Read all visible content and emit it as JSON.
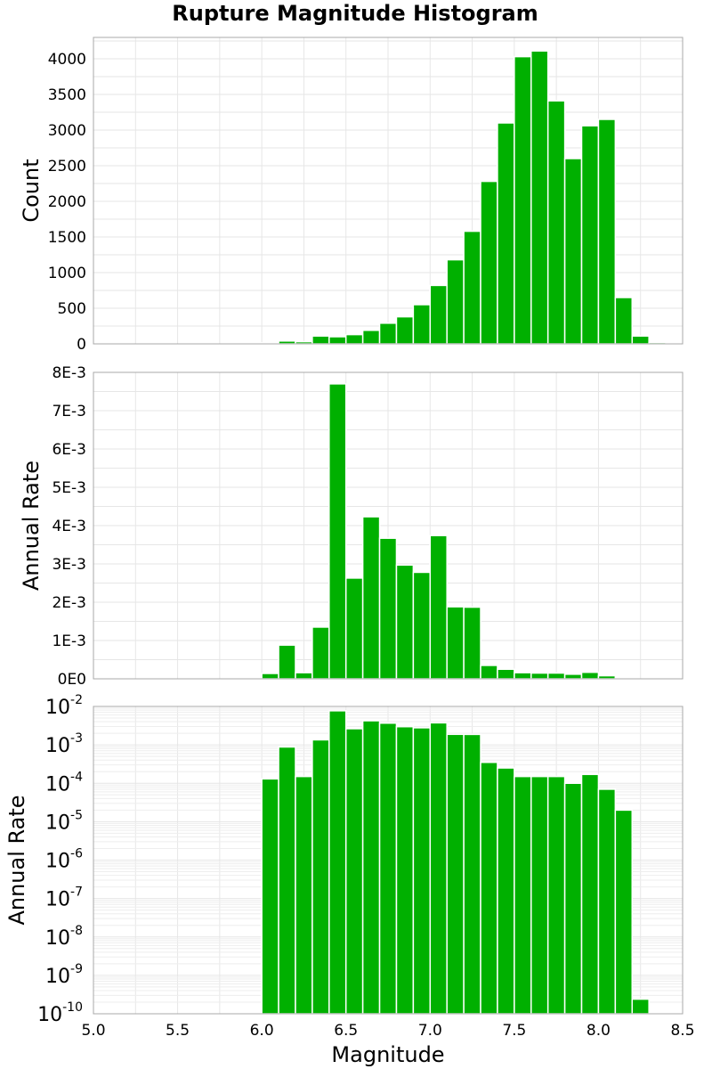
{
  "chart_data": {
    "title": "Rupture Magnitude Histogram",
    "type": "bar",
    "bar_color": "#00b000",
    "x_axis": {
      "label": "Magnitude",
      "range": [
        5.0,
        8.5
      ],
      "ticks": [
        "5.0",
        "5.5",
        "6.0",
        "6.5",
        "7.0",
        "7.5",
        "8.0",
        "8.5"
      ],
      "tick_values": [
        5.0,
        5.5,
        6.0,
        6.5,
        7.0,
        7.5,
        8.0,
        8.5
      ]
    },
    "bin_width": 0.1,
    "bin_centers": [
      6.05,
      6.15,
      6.25,
      6.35,
      6.45,
      6.55,
      6.65,
      6.75,
      6.85,
      6.95,
      7.05,
      7.15,
      7.25,
      7.35,
      7.45,
      7.55,
      7.65,
      7.75,
      7.85,
      7.95,
      8.05,
      8.15,
      8.25,
      8.35
    ],
    "panels": [
      {
        "ylabel": "Count",
        "scale": "linear",
        "ylim": [
          0,
          4300
        ],
        "ticks": [
          "0",
          "500",
          "1000",
          "1500",
          "2000",
          "2500",
          "3000",
          "3500",
          "4000"
        ],
        "tick_values": [
          0,
          500,
          1000,
          1500,
          2000,
          2500,
          3000,
          3500,
          4000
        ],
        "values": [
          15,
          40,
          30,
          110,
          100,
          130,
          190,
          290,
          380,
          550,
          820,
          1180,
          1580,
          2280,
          3100,
          4030,
          4110,
          3410,
          2600,
          3060,
          3150,
          650,
          110,
          20
        ]
      },
      {
        "ylabel": "Annual Rate",
        "scale": "linear",
        "ylim": [
          0,
          0.008
        ],
        "ticks": [
          "0E0",
          "1E-3",
          "2E-3",
          "3E-3",
          "4E-3",
          "5E-3",
          "6E-3",
          "7E-3",
          "8E-3"
        ],
        "tick_values": [
          0,
          0.001,
          0.002,
          0.003,
          0.004,
          0.005,
          0.006,
          0.007,
          0.008
        ],
        "values": [
          0.00014,
          0.00088,
          0.00016,
          0.00135,
          0.0077,
          0.00263,
          0.00423,
          0.00367,
          0.00297,
          0.00278,
          0.00374,
          0.00188,
          0.00187,
          0.00035,
          0.00025,
          0.00016,
          0.00015,
          0.00015,
          0.00012,
          0.00017,
          8e-05,
          2e-05,
          0,
          0
        ]
      },
      {
        "ylabel": "Annual Rate",
        "scale": "log",
        "ylim": [
          1e-10,
          0.01
        ],
        "ticks": [
          {
            "base": "10",
            "exp": "-10",
            "value": 1e-10
          },
          {
            "base": "10",
            "exp": "-9",
            "value": 1e-09
          },
          {
            "base": "10",
            "exp": "-8",
            "value": 1e-08
          },
          {
            "base": "10",
            "exp": "-7",
            "value": 1e-07
          },
          {
            "base": "10",
            "exp": "-6",
            "value": 1e-06
          },
          {
            "base": "10",
            "exp": "-5",
            "value": 1e-05
          },
          {
            "base": "10",
            "exp": "-4",
            "value": 0.0001
          },
          {
            "base": "10",
            "exp": "-3",
            "value": 0.001
          },
          {
            "base": "10",
            "exp": "-2",
            "value": 0.01
          }
        ],
        "values": [
          0.00013,
          0.00088,
          0.00015,
          0.00135,
          0.0077,
          0.00263,
          0.00423,
          0.00367,
          0.00297,
          0.00278,
          0.00374,
          0.00188,
          0.00187,
          0.00035,
          0.00025,
          0.00015,
          0.00015,
          0.00015,
          0.0001,
          0.00017,
          7e-05,
          2e-05,
          2.4e-10,
          0
        ]
      }
    ]
  }
}
